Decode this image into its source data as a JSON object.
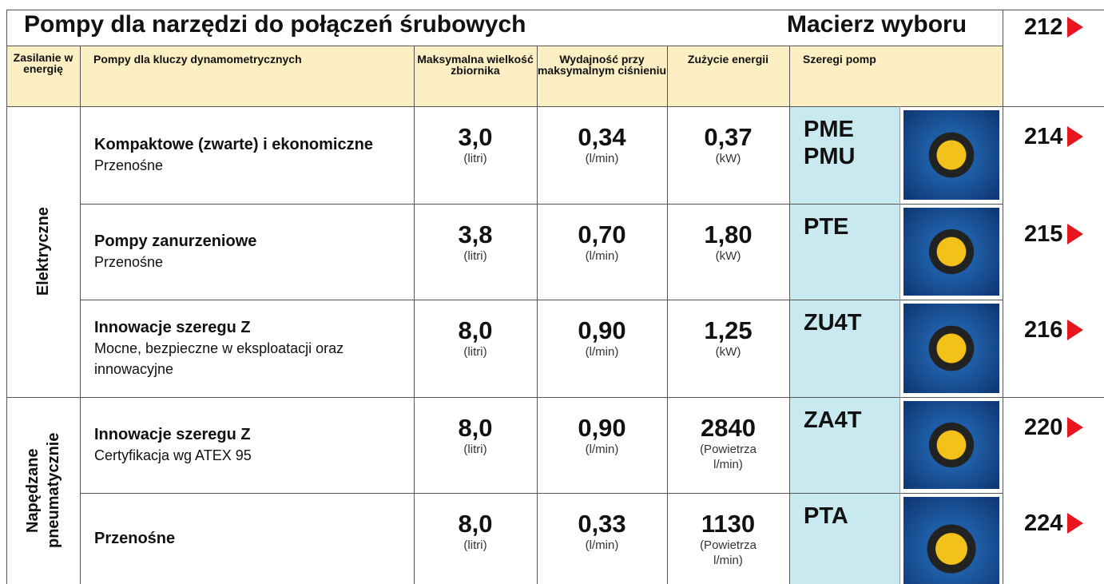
{
  "header": {
    "title": "Pompy dla narzędzi do połączeń śrubowych",
    "subtitle": "Macierz wyboru",
    "page": "212"
  },
  "table": {
    "columns": [
      "Zasilanie w energię",
      "Pompy dla kluczy dynamometrycznych",
      "Maksymalna wielkość zbiornika",
      "Wydajność przy maksymalnym ciśnieniu",
      "Zużycie energii",
      "Szeregi pomp"
    ],
    "groups": [
      {
        "label": "Elektryczne",
        "rows": [
          {
            "name": "Kompaktowe (zwarte) i ekonomiczne",
            "description": "Przenośne",
            "capacity": "3,0",
            "capacity_unit": "(litri)",
            "flow": "0,34",
            "flow_unit": "(l/min)",
            "energy": "0,37",
            "energy_unit": "(kW)",
            "series": [
              "PME",
              "PMU"
            ],
            "page": "214"
          },
          {
            "name": "Pompy zanurzeniowe",
            "description": "Przenośne",
            "capacity": "3,8",
            "capacity_unit": "(litri)",
            "flow": "0,70",
            "flow_unit": "(l/min)",
            "energy": "1,80",
            "energy_unit": "(kW)",
            "series": [
              "PTE"
            ],
            "page": "215"
          },
          {
            "name": "Innowacje szeregu Z",
            "description": "Mocne, bezpieczne w eksploatacji oraz innowacyjne",
            "capacity": "8,0",
            "capacity_unit": "(litri)",
            "flow": "0,90",
            "flow_unit": "(l/min)",
            "energy": "1,25",
            "energy_unit": "(kW)",
            "series": [
              "ZU4T"
            ],
            "page": "216"
          }
        ]
      },
      {
        "label": "Napędzane pneumatycznie",
        "rows": [
          {
            "name": "Innowacje szeregu Z",
            "description": "Certyfikacja wg ATEX 95",
            "capacity": "8,0",
            "capacity_unit": "(litri)",
            "flow": "0,90",
            "flow_unit": "(l/min)",
            "energy": "2840",
            "energy_unit": "(Powietrza l/min)",
            "series": [
              "ZA4T"
            ],
            "page": "220"
          },
          {
            "name": "Przenośne",
            "capacity": "8,0",
            "capacity_unit": "(litri)",
            "flow": "0,33",
            "flow_unit": "(l/min)",
            "energy": "1130",
            "energy_unit": "(Powietrza l/min)",
            "series": [
              "PTA"
            ],
            "page": "224"
          }
        ]
      }
    ]
  }
}
